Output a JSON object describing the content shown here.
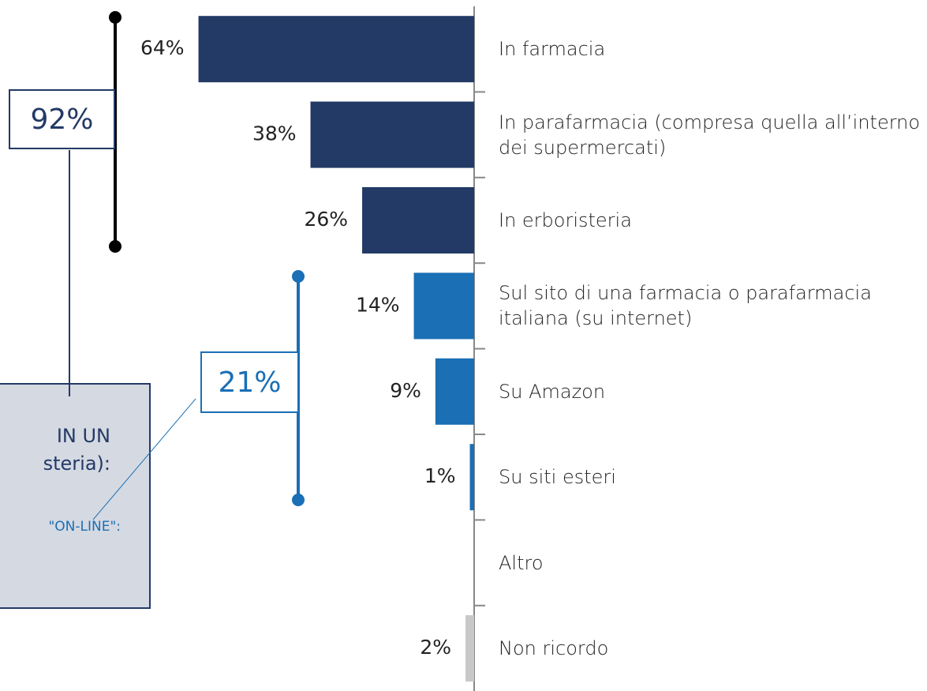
{
  "chart_data": {
    "type": "bar",
    "orientation": "horizontal",
    "categories": [
      "In farmacia",
      "In parafarmacia (compresa quella all’interno dei supermercati)",
      "In erboristeria",
      "Sul sito di una farmacia o parafarmacia italiana (su internet)",
      "Su Amazon",
      "Su siti esteri",
      "Altro",
      "Non ricordo"
    ],
    "values": [
      64,
      38,
      26,
      14,
      9,
      1,
      null,
      2
    ],
    "value_labels": [
      "64%",
      "38%",
      "26%",
      "14%",
      "9%",
      "1%",
      null,
      "2%"
    ],
    "colors": [
      "#233a66",
      "#233a66",
      "#233a66",
      "#1a6fb5",
      "#1a6fb5",
      "#1a6fb5",
      "#1a6fb5",
      "#c8c8c8"
    ],
    "xlim": [
      0,
      100
    ],
    "group_totals": {
      "values": [
        92,
        21
      ],
      "value_labels": [
        "92%",
        "21%"
      ],
      "colors": [
        "#233a66",
        "#1a6fb5"
      ]
    },
    "callout_texts": [
      "IN UN",
      "steria):",
      "\"ON-LINE\":"
    ]
  }
}
